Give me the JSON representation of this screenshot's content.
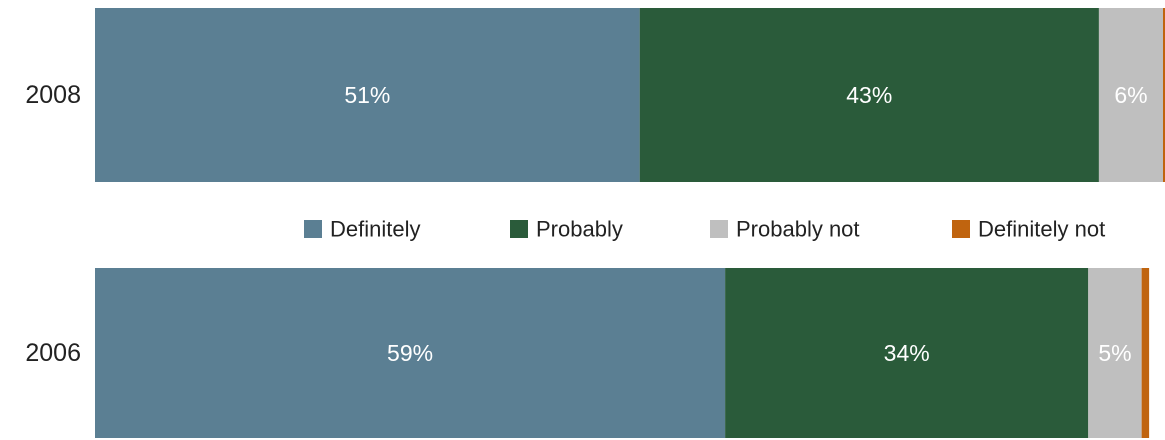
{
  "chart_data": {
    "type": "bar",
    "orientation": "horizontal",
    "stacked": true,
    "categories": [
      "2008",
      "2006"
    ],
    "series": [
      {
        "name": "Definitely",
        "color": "#5b7f93",
        "values": [
          51,
          59
        ],
        "labels": [
          "51%",
          "59%"
        ]
      },
      {
        "name": "Probably",
        "color": "#2a5b3a",
        "values": [
          43,
          34
        ],
        "labels": [
          "43%",
          "34%"
        ]
      },
      {
        "name": "Probably not",
        "color": "#bfbfbf",
        "values": [
          6,
          5
        ],
        "labels": [
          "6%",
          "5%"
        ]
      },
      {
        "name": "Definitely not",
        "color": "#c0640f",
        "values": [
          0.3,
          0.7
        ],
        "labels": [
          "",
          ""
        ]
      }
    ],
    "xlim": [
      0,
      100
    ],
    "legend_position": "center",
    "grid": false,
    "title": "",
    "xlabel": "",
    "ylabel": ""
  }
}
